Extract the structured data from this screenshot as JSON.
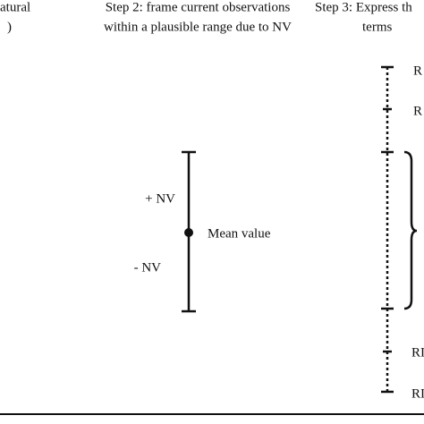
{
  "step1": {
    "lines": [
      "atural",
      ")"
    ]
  },
  "step2": {
    "lines": [
      "Step 2: frame current observations",
      "within a plausible range due to NV"
    ],
    "labels": {
      "plus": "+ NV",
      "mean": "Mean value",
      "minus": "- NV"
    }
  },
  "step3": {
    "lines": [
      "Step 3: Express th",
      "terms"
    ],
    "labels": [
      "R",
      "R",
      "RI",
      "RI"
    ]
  }
}
